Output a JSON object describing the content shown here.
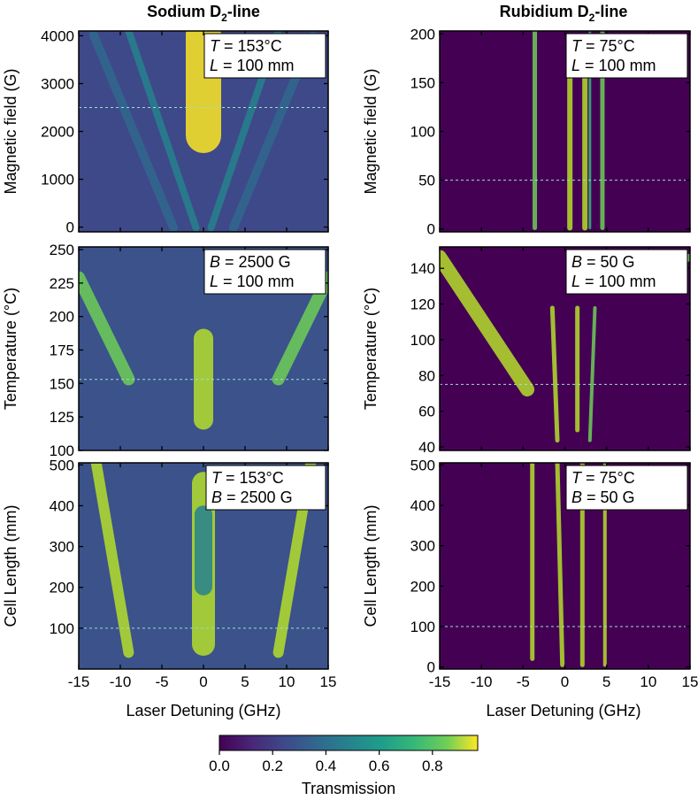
{
  "figure": {
    "columns": [
      {
        "title_main": "Sodium D",
        "title_sub": "2",
        "title_tail": "-line"
      },
      {
        "title_main": "Rubidium D",
        "title_sub": "2",
        "title_tail": "-line"
      }
    ],
    "xlabel": "Laser Detuning (GHz)",
    "colorbar": {
      "label": "Transmission",
      "ticks": [
        "0.0",
        "0.2",
        "0.4",
        "0.6",
        "0.8"
      ],
      "range": [
        0,
        0.97
      ],
      "colormap": "viridis"
    }
  },
  "chart_data": [
    {
      "type": "heatmap",
      "element": "Sodium",
      "row": "magnetic-field",
      "ylabel": "Magnetic field (G)",
      "xlim": [
        -15,
        15
      ],
      "ylim": [
        -100,
        4100
      ],
      "xticks": [
        -15,
        -10,
        -5,
        0,
        5,
        10,
        15
      ],
      "xtick_labels": [
        "-15",
        "-10",
        "-5",
        "0",
        "5",
        "10",
        "15"
      ],
      "yticks": [
        0,
        1000,
        2000,
        3000,
        4000
      ],
      "ytick_labels": [
        "0",
        "1000",
        "2000",
        "3000",
        "4000"
      ],
      "reference_line": 2500,
      "annotation": [
        {
          "var": "T",
          "text": " = 153°C"
        },
        {
          "var": "L",
          "text": " = 100 mm"
        }
      ]
    },
    {
      "type": "heatmap",
      "element": "Rubidium",
      "row": "magnetic-field",
      "ylabel": "Magnetic field (G)",
      "xlim": [
        -15,
        15
      ],
      "ylim": [
        -3,
        203
      ],
      "xticks": [
        -15,
        -10,
        -5,
        0,
        5,
        10,
        15
      ],
      "xtick_labels": [
        "-15",
        "-10",
        "-5",
        "0",
        "5",
        "10",
        "15"
      ],
      "yticks": [
        0,
        50,
        100,
        150,
        200
      ],
      "ytick_labels": [
        "0",
        "50",
        "100",
        "150",
        "200"
      ],
      "reference_line": 50,
      "annotation": [
        {
          "var": "T",
          "text": " = 75°C"
        },
        {
          "var": "L",
          "text": " = 100 mm"
        }
      ]
    },
    {
      "type": "heatmap",
      "element": "Sodium",
      "row": "temperature",
      "ylabel": "Temperature (°C)",
      "xlim": [
        -15,
        15
      ],
      "ylim": [
        100,
        252
      ],
      "xticks": [
        -15,
        -10,
        -5,
        0,
        5,
        10,
        15
      ],
      "xtick_labels": [
        "-15",
        "-10",
        "-5",
        "0",
        "5",
        "10",
        "15"
      ],
      "yticks": [
        100,
        125,
        150,
        175,
        200,
        225,
        250
      ],
      "ytick_labels": [
        "100",
        "125",
        "150",
        "175",
        "200",
        "225",
        "250"
      ],
      "reference_line": 153,
      "annotation": [
        {
          "var": "B",
          "text": " = 2500 G"
        },
        {
          "var": "L",
          "text": " = 100 mm"
        }
      ]
    },
    {
      "type": "heatmap",
      "element": "Rubidium",
      "row": "temperature",
      "ylabel": "Temperature (°C)",
      "xlim": [
        -15,
        15
      ],
      "ylim": [
        38,
        152
      ],
      "xticks": [
        -15,
        -10,
        -5,
        0,
        5,
        10,
        15
      ],
      "xtick_labels": [
        "-15",
        "-10",
        "-5",
        "0",
        "5",
        "10",
        "15"
      ],
      "yticks": [
        40,
        60,
        80,
        100,
        120,
        140
      ],
      "ytick_labels": [
        "40",
        "60",
        "80",
        "100",
        "120",
        "140"
      ],
      "reference_line": 75,
      "annotation": [
        {
          "var": "B",
          "text": " = 50 G"
        },
        {
          "var": "L",
          "text": " = 100 mm"
        }
      ]
    },
    {
      "type": "heatmap",
      "element": "Sodium",
      "row": "cell-length",
      "ylabel": "Cell Length (mm)",
      "xlim": [
        -15,
        15
      ],
      "ylim": [
        0,
        505
      ],
      "xticks": [
        -15,
        -10,
        -5,
        0,
        5,
        10,
        15
      ],
      "xtick_labels": [
        "-15",
        "-10",
        "-5",
        "0",
        "5",
        "10",
        "15"
      ],
      "yticks": [
        100,
        200,
        300,
        400,
        500
      ],
      "ytick_labels": [
        "100",
        "200",
        "300",
        "400",
        "500"
      ],
      "reference_line": 100,
      "annotation": [
        {
          "var": "T",
          "text": " = 153°C"
        },
        {
          "var": "B",
          "text": " = 2500 G"
        }
      ]
    },
    {
      "type": "heatmap",
      "element": "Rubidium",
      "row": "cell-length",
      "ylabel": "Cell Length (mm)",
      "xlim": [
        -15,
        15
      ],
      "ylim": [
        -5,
        505
      ],
      "xticks": [
        -15,
        -10,
        -5,
        0,
        5,
        10,
        15
      ],
      "xtick_labels": [
        "-15",
        "-10",
        "-5",
        "0",
        "5",
        "10",
        "15"
      ],
      "yticks": [
        0,
        100,
        200,
        300,
        400,
        500
      ],
      "ytick_labels": [
        "0",
        "100",
        "200",
        "300",
        "400",
        "500"
      ],
      "reference_line": 100,
      "annotation": [
        {
          "var": "T",
          "text": " = 75°C"
        },
        {
          "var": "B",
          "text": " = 50 G"
        }
      ]
    }
  ]
}
